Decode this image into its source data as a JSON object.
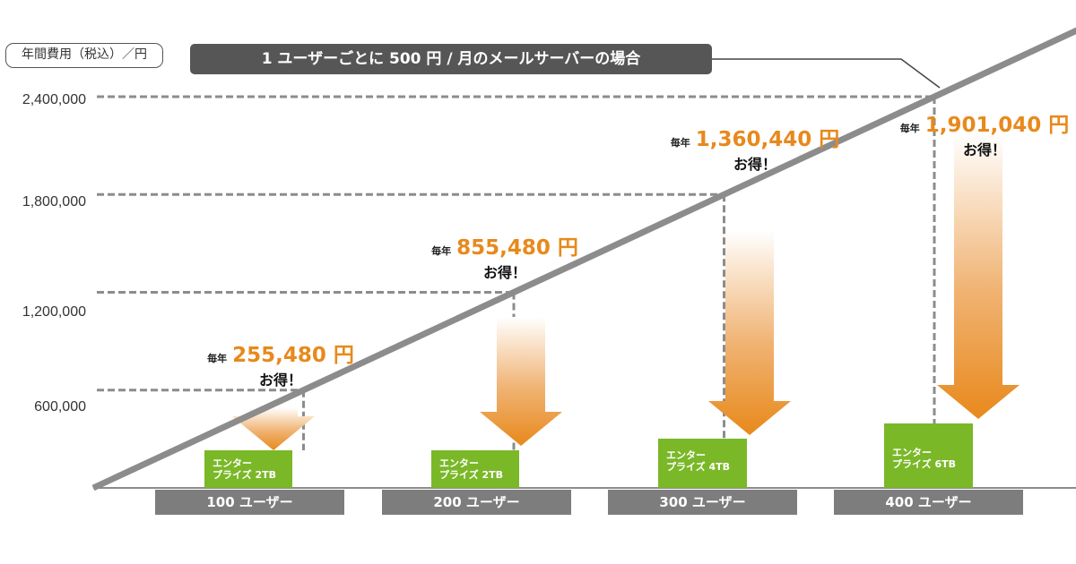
{
  "header": {
    "axis_unit_label": "年間費用（税込）／円",
    "title": "1 ユーザーごとに 500 円 / 月のメールサーバーの場合"
  },
  "colors": {
    "line": "#8c8c8c",
    "guide": "#8c8c8c",
    "arrow_top": "#ffffff",
    "arrow_bottom": "#e8891c",
    "savings_amount": "#e8891c",
    "product_box": "#7ab828",
    "category_box": "#7d7d7d",
    "title_box": "#565656"
  },
  "chart_data": {
    "type": "line",
    "title": "1 ユーザーごとに 500 円 / 月のメールサーバーの場合",
    "ylabel": "年間費用（税込）／円",
    "xlabel": "",
    "y_ticks": [
      "600,000",
      "1,200,000",
      "1,800,000",
      "2,400,000"
    ],
    "y_tick_values": [
      600000,
      1200000,
      1800000,
      2400000
    ],
    "ylim": [
      0,
      2400000
    ],
    "categories": [
      "100 ユーザー",
      "200 ユーザー",
      "300 ユーザー",
      "400 ユーザー"
    ],
    "users": [
      100,
      200,
      300,
      400
    ],
    "annual_cost": [
      600000,
      1200000,
      1800000,
      2400000
    ],
    "products": [
      {
        "line1": "エンター",
        "line2": "プライズ 2TB"
      },
      {
        "line1": "エンター",
        "line2": "プライズ 2TB"
      },
      {
        "line1": "エンター",
        "line2": "プライズ 4TB"
      },
      {
        "line1": "エンター",
        "line2": "プライズ 6TB"
      }
    ],
    "savings": [
      {
        "prefix": "毎年",
        "amount": "255,480 円",
        "suffix": "お得！",
        "value": 255480
      },
      {
        "prefix": "毎年",
        "amount": "855,480 円",
        "suffix": "お得！",
        "value": 855480
      },
      {
        "prefix": "毎年",
        "amount": "1,360,440 円",
        "suffix": "お得！",
        "value": 1360440
      },
      {
        "prefix": "毎年",
        "amount": "1,901,040 円",
        "suffix": "お得！",
        "value": 1901040
      }
    ],
    "grid": false,
    "legend": "none"
  }
}
